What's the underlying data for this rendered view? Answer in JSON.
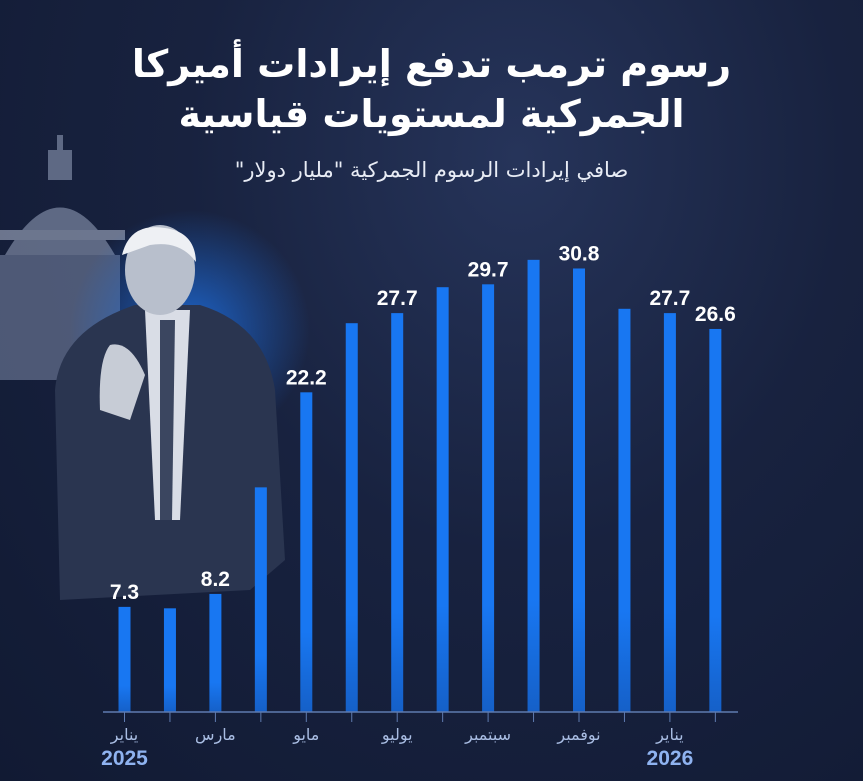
{
  "title_line1": "رسوم ترمب تدفع إيرادات أميركا",
  "title_line2": "الجمركية لمستويات قياسية",
  "subtitle": "صافي إيرادات الرسوم الجمركية \"مليار دولار\"",
  "colors": {
    "background": "#141e3a",
    "bar": "#1877f2",
    "axis": "#5f7bb0",
    "label": "#ffffff",
    "year": "#8fb3f0"
  },
  "chart_data": {
    "type": "bar",
    "title": "رسوم ترمب تدفع إيرادات أميركا الجمركية لمستويات قياسية",
    "subtitle": "صافي إيرادات الرسوم الجمركية \"مليار دولار\"",
    "categories": [
      "2025-01",
      "2025-02",
      "2025-03",
      "2025-04",
      "2025-05",
      "2025-06",
      "2025-07",
      "2025-08",
      "2025-09",
      "2025-10",
      "2025-11",
      "2025-12",
      "2026-01",
      "2026-02"
    ],
    "values": [
      7.3,
      7.2,
      8.2,
      15.6,
      22.2,
      27.0,
      27.7,
      29.5,
      29.7,
      31.4,
      30.8,
      28.0,
      27.7,
      26.6
    ],
    "data_labels": [
      "7.3",
      "",
      "8.2",
      "",
      "22.2",
      "",
      "27.7",
      "",
      "29.7",
      "",
      "30.8",
      "",
      "27.7",
      "26.6"
    ],
    "tick_labels": [
      "يناير",
      "",
      "مارس",
      "",
      "مايو",
      "",
      "يوليو",
      "",
      "سبتمبر",
      "",
      "نوفمبر",
      "",
      "يناير",
      ""
    ],
    "year_labels": [
      {
        "index": 0,
        "label": "2025"
      },
      {
        "index": 12,
        "label": "2026"
      }
    ],
    "ylabel": "",
    "xlabel": "",
    "ylim": [
      0,
      33
    ],
    "grid": false,
    "legend": "none"
  }
}
